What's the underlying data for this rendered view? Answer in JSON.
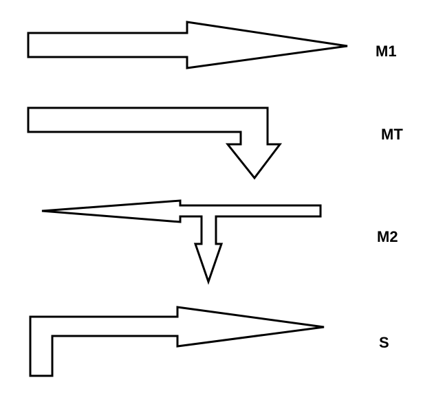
{
  "diagram": {
    "stroke_color": "#000000",
    "fill_color": "#ffffff",
    "arrows": [
      {
        "id": "m1",
        "label": "M1",
        "shape": "straight arrow pointing right"
      },
      {
        "id": "mt",
        "label": "MT",
        "shape": "bent arrow turning down"
      },
      {
        "id": "m2",
        "label": "M2",
        "shape": "arrow pointing left with downward branch"
      },
      {
        "id": "s",
        "label": "S",
        "shape": "L-shaped arrow pointing right"
      }
    ]
  }
}
